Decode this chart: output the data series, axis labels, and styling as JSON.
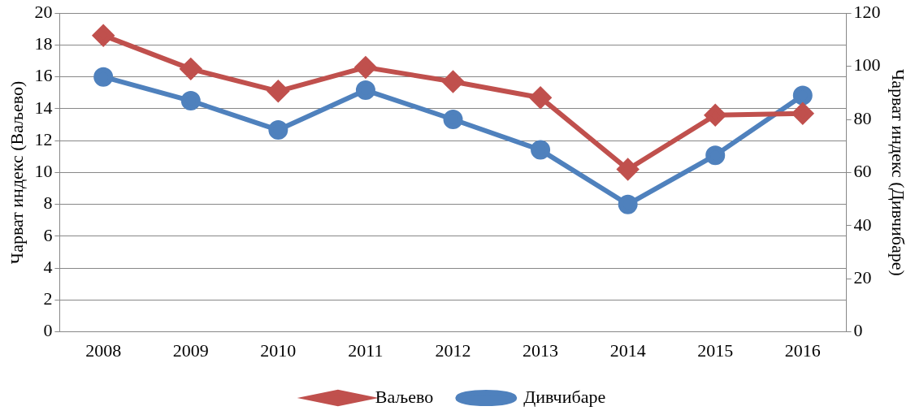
{
  "chart_data": {
    "type": "line",
    "ylabel": "Чарват индекс (Ваљево)",
    "y2label": "Чарват индекс (Дивчибаре)",
    "categories": [
      "2008",
      "2009",
      "2010",
      "2011",
      "2012",
      "2013",
      "2014",
      "2015",
      "2016"
    ],
    "series": [
      {
        "name": "Ваљево",
        "color": "#c0504d",
        "marker": "diamond",
        "values": [
          18.6,
          16.5,
          15.1,
          16.6,
          15.7,
          14.7,
          10.2,
          13.6,
          13.7
        ]
      },
      {
        "name": "Дивчибаре",
        "color": "#4f81bd",
        "marker": "circle",
        "axis": "y2",
        "values": [
          96,
          87,
          76,
          91,
          80,
          68.5,
          48,
          66.5,
          89
        ]
      }
    ],
    "ylim": [
      0,
      20
    ],
    "yticks": [
      0,
      2,
      4,
      6,
      8,
      10,
      12,
      14,
      16,
      18,
      20
    ],
    "y2lim": [
      0,
      120
    ],
    "y2ticks": [
      0,
      20,
      40,
      60,
      80,
      100,
      120
    ],
    "grid": "y",
    "legend": "bottom"
  }
}
